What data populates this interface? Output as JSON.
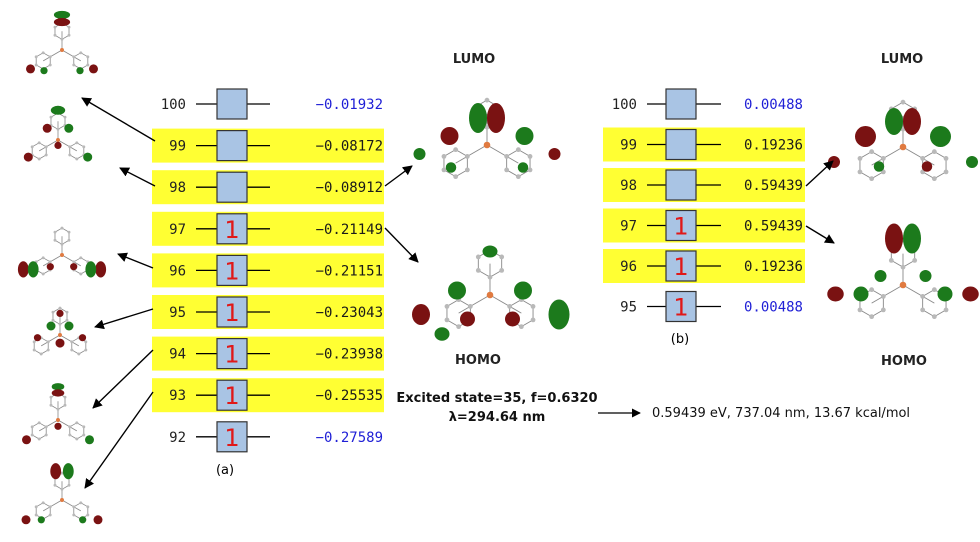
{
  "panel_a": {
    "caption": "(a)",
    "orbitals": [
      {
        "index": "100",
        "energy": "−0.01932",
        "occupied": false,
        "highlight": false,
        "energy_color": "#1f1fd6"
      },
      {
        "index": "99",
        "energy": "−0.08172",
        "occupied": false,
        "highlight": true,
        "energy_color": "#1a1a1a"
      },
      {
        "index": "98",
        "energy": "−0.08912",
        "occupied": false,
        "highlight": true,
        "energy_color": "#1a1a1a"
      },
      {
        "index": "97",
        "energy": "−0.21149",
        "occupied": true,
        "highlight": true,
        "energy_color": "#1a1a1a"
      },
      {
        "index": "96",
        "energy": "−0.21151",
        "occupied": true,
        "highlight": true,
        "energy_color": "#1a1a1a"
      },
      {
        "index": "95",
        "energy": "−0.23043",
        "occupied": true,
        "highlight": true,
        "energy_color": "#1a1a1a"
      },
      {
        "index": "94",
        "energy": "−0.23938",
        "occupied": true,
        "highlight": true,
        "energy_color": "#1a1a1a"
      },
      {
        "index": "93",
        "energy": "−0.25535",
        "occupied": true,
        "highlight": true,
        "energy_color": "#1a1a1a"
      },
      {
        "index": "92",
        "energy": "−0.27589",
        "occupied": true,
        "highlight": false,
        "energy_color": "#1f1fd6"
      }
    ]
  },
  "panel_b": {
    "caption": "(b)",
    "orbitals": [
      {
        "index": "100",
        "energy": "0.00488",
        "occupied": false,
        "highlight": false,
        "energy_color": "#1f1fd6"
      },
      {
        "index": "99",
        "energy": "0.19236",
        "occupied": false,
        "highlight": true,
        "energy_color": "#1a1a1a"
      },
      {
        "index": "98",
        "energy": "0.59439",
        "occupied": false,
        "highlight": true,
        "energy_color": "#1a1a1a"
      },
      {
        "index": "97",
        "energy": "0.59439",
        "occupied": true,
        "highlight": true,
        "energy_color": "#1a1a1a"
      },
      {
        "index": "96",
        "energy": "0.19236",
        "occupied": true,
        "highlight": true,
        "energy_color": "#1a1a1a"
      },
      {
        "index": "95",
        "energy": "0.00488",
        "occupied": true,
        "highlight": false,
        "energy_color": "#1f1fd6"
      }
    ]
  },
  "labels": {
    "lumo_a": "LUMO",
    "homo_a": "HOMO",
    "lumo_b": "LUMO",
    "homo_b": "HOMO",
    "excited_line1": "Excited state=35, f=0.6320",
    "excited_line2": "λ=294.64 nm",
    "result": "0.59439 eV, 737.04 nm, 13.67 kcal/mol"
  },
  "symbols": {
    "spin_up": "1"
  },
  "colors": {
    "highlight": "#ffff33",
    "box_fill": "#a9c4e4",
    "lobe_red": "#7a1212",
    "lobe_green": "#1c7a1c",
    "atom_gray": "#b9b9b9",
    "metal": "#e07a40"
  }
}
